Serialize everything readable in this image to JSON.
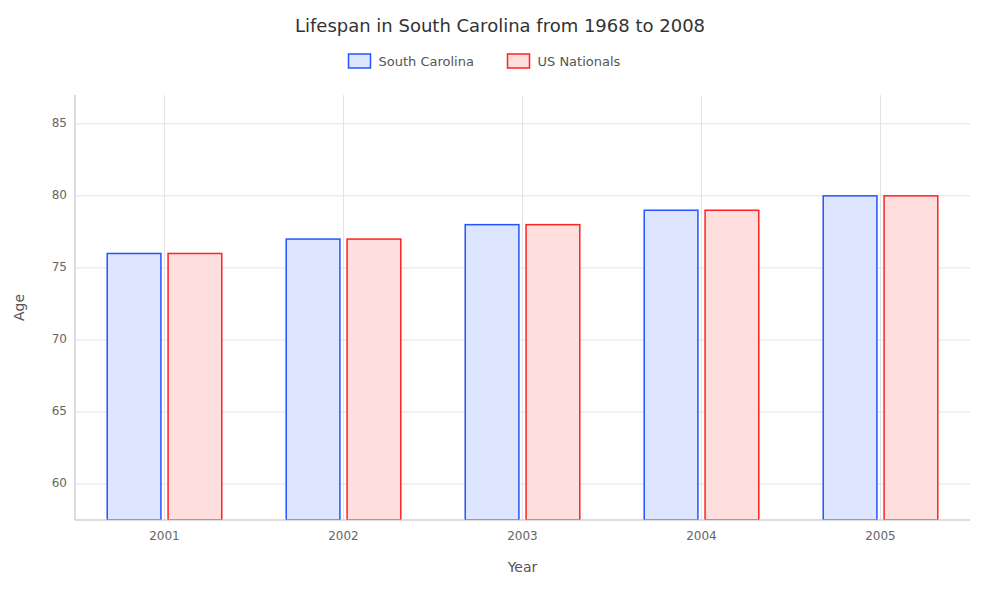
{
  "chart_data": {
    "type": "bar",
    "title": "Lifespan in South Carolina from 1968 to 2008",
    "x_label": "Year",
    "y_label": "Age",
    "categories": [
      "2001",
      "2002",
      "2003",
      "2004",
      "2005"
    ],
    "series": [
      {
        "name": "South Carolina",
        "color": "#2255ff",
        "values": [
          76,
          77,
          78,
          79,
          80
        ]
      },
      {
        "name": "US Nationals",
        "color": "#ff2222",
        "values": [
          76,
          77,
          78,
          79,
          80
        ]
      }
    ],
    "ylim": [
      57.5,
      87
    ],
    "yticks": [
      60,
      65,
      70,
      75,
      80,
      85
    ],
    "grid": true,
    "legend": "top"
  }
}
